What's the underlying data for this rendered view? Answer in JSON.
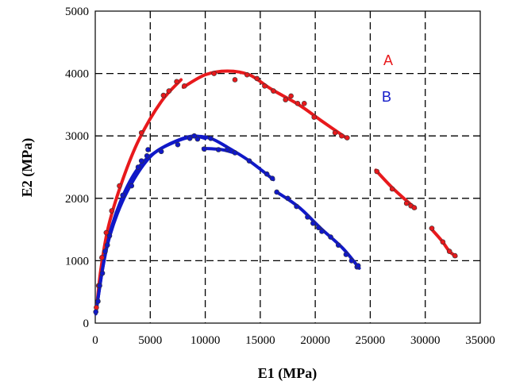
{
  "chart_data": {
    "type": "scatter",
    "title": "",
    "xlabel": "E1 (MPa)",
    "ylabel": "E2 (MPa)",
    "xlim": [
      0,
      35000
    ],
    "ylim": [
      0,
      5000
    ],
    "xticks": [
      0,
      5000,
      10000,
      15000,
      20000,
      25000,
      30000,
      35000
    ],
    "yticks": [
      0,
      1000,
      2000,
      3000,
      4000,
      5000
    ],
    "grid": "dashed",
    "series": [
      {
        "name": "A",
        "color": "#e8191c",
        "points": [
          [
            100,
            250
          ],
          [
            300,
            600
          ],
          [
            600,
            1050
          ],
          [
            1000,
            1450
          ],
          [
            1500,
            1800
          ],
          [
            2200,
            2200
          ],
          [
            4200,
            3050
          ],
          [
            6200,
            3650
          ],
          [
            6700,
            3720
          ],
          [
            7400,
            3870
          ],
          [
            8100,
            3800
          ],
          [
            10800,
            4000
          ],
          [
            12700,
            3900
          ],
          [
            13800,
            3980
          ],
          [
            14700,
            3920
          ],
          [
            15400,
            3800
          ],
          [
            16200,
            3720
          ],
          [
            17300,
            3580
          ],
          [
            17800,
            3640
          ],
          [
            18400,
            3520
          ],
          [
            19000,
            3520
          ],
          [
            19900,
            3300
          ],
          [
            21800,
            3050
          ],
          [
            22400,
            3000
          ],
          [
            22900,
            2970
          ],
          [
            25600,
            2430
          ],
          [
            27000,
            2150
          ],
          [
            28300,
            1920
          ],
          [
            28700,
            1880
          ],
          [
            29000,
            1850
          ],
          [
            30600,
            1520
          ],
          [
            31600,
            1300
          ],
          [
            32200,
            1150
          ],
          [
            32700,
            1080
          ]
        ],
        "curves": [
          [
            [
              100,
              200
            ],
            [
              500,
              850
            ],
            [
              1200,
              1550
            ],
            [
              2500,
              2300
            ],
            [
              4000,
              2950
            ],
            [
              6000,
              3550
            ],
            [
              7800,
              3900
            ]
          ],
          [
            [
              8000,
              3780
            ],
            [
              10000,
              3980
            ],
            [
              12000,
              4040
            ],
            [
              14000,
              3980
            ],
            [
              16000,
              3750
            ],
            [
              18500,
              3500
            ],
            [
              20500,
              3250
            ],
            [
              22800,
              2970
            ]
          ],
          [
            [
              25500,
              2450
            ],
            [
              27000,
              2170
            ],
            [
              28500,
              1930
            ],
            [
              29100,
              1840
            ]
          ],
          [
            [
              30500,
              1520
            ],
            [
              31500,
              1320
            ],
            [
              32200,
              1150
            ],
            [
              32800,
              1070
            ]
          ]
        ],
        "label": "A"
      },
      {
        "name": "B",
        "color": "#1018c8",
        "points": [
          [
            50,
            180
          ],
          [
            250,
            350
          ],
          [
            400,
            600
          ],
          [
            650,
            800
          ],
          [
            900,
            1150
          ],
          [
            1100,
            1250
          ],
          [
            1300,
            1400
          ],
          [
            2500,
            2050
          ],
          [
            3300,
            2200
          ],
          [
            3900,
            2500
          ],
          [
            4200,
            2600
          ],
          [
            4700,
            2680
          ],
          [
            4800,
            2780
          ],
          [
            6000,
            2750
          ],
          [
            7500,
            2860
          ],
          [
            8600,
            2960
          ],
          [
            9000,
            3000
          ],
          [
            9300,
            2950
          ],
          [
            9900,
            2790
          ],
          [
            10500,
            2960
          ],
          [
            11200,
            2780
          ],
          [
            12000,
            2780
          ],
          [
            12700,
            2730
          ],
          [
            14000,
            2600
          ],
          [
            15600,
            2390
          ],
          [
            16100,
            2320
          ],
          [
            16500,
            2100
          ],
          [
            17500,
            2000
          ],
          [
            18300,
            1870
          ],
          [
            19300,
            1700
          ],
          [
            19800,
            1600
          ],
          [
            20300,
            1530
          ],
          [
            20600,
            1470
          ],
          [
            21400,
            1380
          ],
          [
            22100,
            1250
          ],
          [
            22800,
            1100
          ],
          [
            23300,
            1000
          ],
          [
            23800,
            900
          ],
          [
            23900,
            920
          ]
        ],
        "curves": [
          [
            [
              50,
              150
            ],
            [
              700,
              900
            ],
            [
              1500,
              1550
            ],
            [
              2800,
              2150
            ],
            [
              4200,
              2550
            ],
            [
              6000,
              2800
            ],
            [
              7800,
              2950
            ],
            [
              9000,
              3000
            ],
            [
              10000,
              2960
            ]
          ],
          [
            [
              50,
              150
            ],
            [
              900,
              1100
            ],
            [
              2000,
              1750
            ],
            [
              3500,
              2300
            ],
            [
              5200,
              2700
            ],
            [
              7200,
              2900
            ],
            [
              9000,
              2990
            ],
            [
              10500,
              2960
            ],
            [
              12000,
              2820
            ],
            [
              14000,
              2600
            ],
            [
              16200,
              2300
            ]
          ],
          [
            [
              9800,
              2800
            ],
            [
              11500,
              2780
            ],
            [
              12800,
              2720
            ]
          ],
          [
            [
              16500,
              2100
            ],
            [
              18500,
              1860
            ],
            [
              20500,
              1520
            ],
            [
              22500,
              1200
            ],
            [
              24000,
              880
            ]
          ]
        ],
        "label": "B"
      }
    ]
  }
}
